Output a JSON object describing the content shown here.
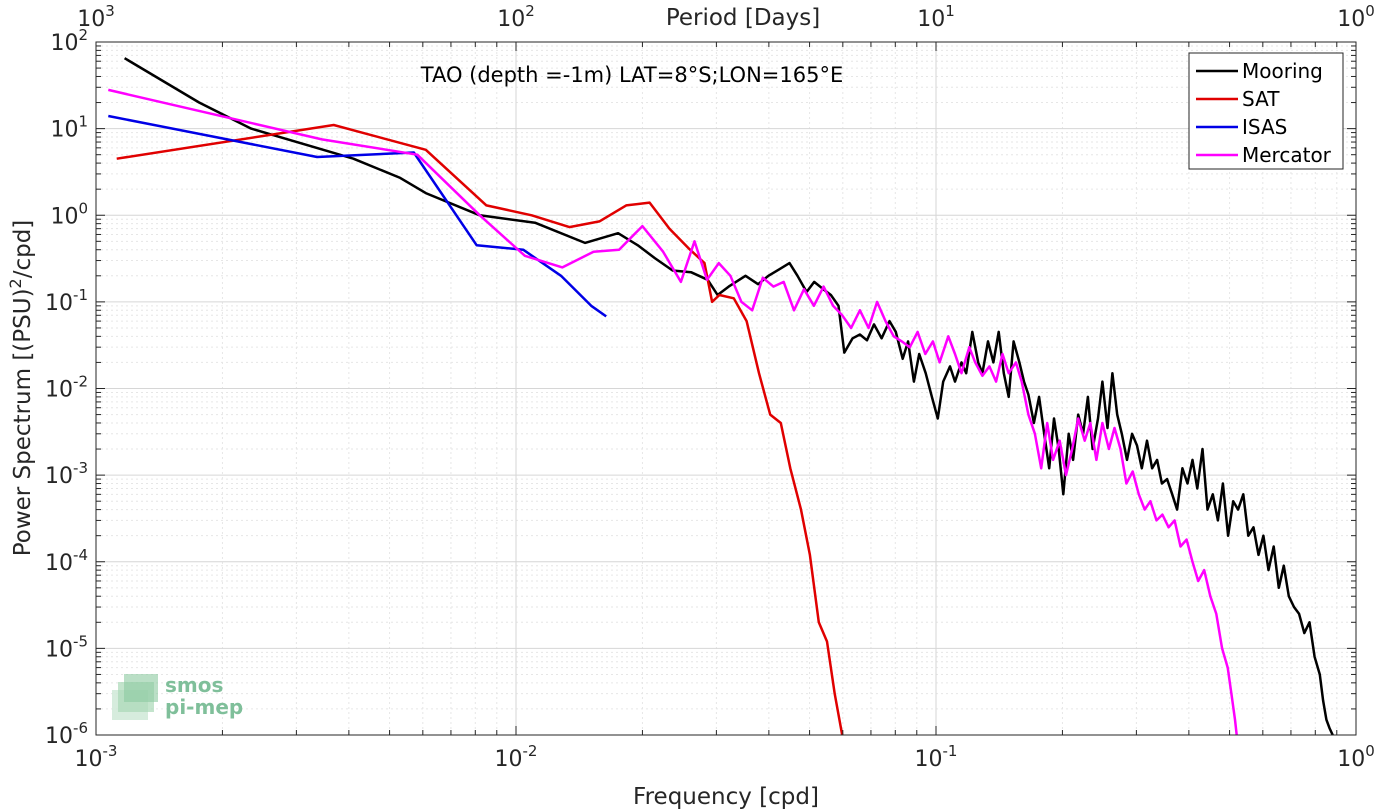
{
  "chart_data": {
    "type": "line",
    "title": "TAO (depth =-1m) LAT=8°S;LON=165°E",
    "xlabel": "Frequency [cpd]",
    "ylabel_parts": {
      "prefix": "Power Spectrum [(PSU)",
      "sup": "2",
      "suffix": "/cpd]"
    },
    "top_xlabel": "Period [Days]",
    "x_scale": "log",
    "y_scale": "log",
    "xlim": [
      0.001,
      1
    ],
    "ylim": [
      1e-06,
      100
    ],
    "grid": true,
    "legend_position": "top-right",
    "x_ticks": [
      {
        "base": "10",
        "exp": "-3",
        "value": 0.001
      },
      {
        "base": "10",
        "exp": "-2",
        "value": 0.01
      },
      {
        "base": "10",
        "exp": "-1",
        "value": 0.1
      },
      {
        "base": "10",
        "exp": "0",
        "value": 1
      }
    ],
    "top_ticks": [
      {
        "base": "10",
        "exp": "3",
        "value": 0.001
      },
      {
        "base": "10",
        "exp": "2",
        "value": 0.01
      },
      {
        "base": "10",
        "exp": "1",
        "value": 0.1
      },
      {
        "base": "10",
        "exp": "0",
        "value": 1
      }
    ],
    "y_ticks": [
      {
        "base": "10",
        "exp": "2",
        "value": 100
      },
      {
        "base": "10",
        "exp": "1",
        "value": 10
      },
      {
        "base": "10",
        "exp": "0",
        "value": 1
      },
      {
        "base": "10",
        "exp": "-1",
        "value": 0.1
      },
      {
        "base": "10",
        "exp": "-2",
        "value": 0.01
      },
      {
        "base": "10",
        "exp": "-3",
        "value": 0.001
      },
      {
        "base": "10",
        "exp": "-4",
        "value": 0.0001
      },
      {
        "base": "10",
        "exp": "-5",
        "value": 1e-05
      },
      {
        "base": "10",
        "exp": "-6",
        "value": 1e-06
      }
    ],
    "series": [
      {
        "name": "Mooring",
        "color": "#000000",
        "points": [
          [
            0.00117,
            65
          ],
          [
            0.00176,
            20
          ],
          [
            0.00234,
            10
          ],
          [
            0.0041,
            4.5
          ],
          [
            0.0053,
            2.7
          ],
          [
            0.0061,
            1.8
          ],
          [
            0.0082,
            1.0
          ],
          [
            0.0111,
            0.82
          ],
          [
            0.0146,
            0.48
          ],
          [
            0.0175,
            0.62
          ],
          [
            0.0195,
            0.45
          ],
          [
            0.0214,
            0.32
          ],
          [
            0.0236,
            0.23
          ],
          [
            0.0261,
            0.22
          ],
          [
            0.0286,
            0.18
          ],
          [
            0.0302,
            0.12
          ],
          [
            0.0321,
            0.15
          ],
          [
            0.0352,
            0.2
          ],
          [
            0.0377,
            0.16
          ],
          [
            0.0399,
            0.2
          ],
          [
            0.0425,
            0.24
          ],
          [
            0.0448,
            0.28
          ],
          [
            0.0468,
            0.2
          ],
          [
            0.0492,
            0.13
          ],
          [
            0.0513,
            0.17
          ],
          [
            0.0539,
            0.14
          ],
          [
            0.0562,
            0.12
          ],
          [
            0.0586,
            0.09
          ],
          [
            0.0605,
            0.026
          ],
          [
            0.0633,
            0.038
          ],
          [
            0.0659,
            0.042
          ],
          [
            0.0685,
            0.036
          ],
          [
            0.0712,
            0.055
          ],
          [
            0.0742,
            0.038
          ],
          [
            0.0775,
            0.06
          ],
          [
            0.0802,
            0.045
          ],
          [
            0.0833,
            0.022
          ],
          [
            0.0858,
            0.035
          ],
          [
            0.0886,
            0.012
          ],
          [
            0.0912,
            0.025
          ],
          [
            0.0945,
            0.015
          ],
          [
            0.0978,
            0.008
          ],
          [
            0.101,
            0.0045
          ],
          [
            0.104,
            0.012
          ],
          [
            0.108,
            0.018
          ],
          [
            0.111,
            0.012
          ],
          [
            0.115,
            0.02
          ],
          [
            0.118,
            0.015
          ],
          [
            0.122,
            0.045
          ],
          [
            0.126,
            0.02
          ],
          [
            0.129,
            0.015
          ],
          [
            0.133,
            0.035
          ],
          [
            0.137,
            0.02
          ],
          [
            0.141,
            0.045
          ],
          [
            0.145,
            0.015
          ],
          [
            0.149,
            0.008
          ],
          [
            0.153,
            0.035
          ],
          [
            0.158,
            0.02
          ],
          [
            0.162,
            0.012
          ],
          [
            0.166,
            0.0085
          ],
          [
            0.171,
            0.004
          ],
          [
            0.176,
            0.008
          ],
          [
            0.181,
            0.003
          ],
          [
            0.186,
            0.0012
          ],
          [
            0.191,
            0.0045
          ],
          [
            0.196,
            0.002
          ],
          [
            0.201,
            0.0006
          ],
          [
            0.207,
            0.003
          ],
          [
            0.212,
            0.0015
          ],
          [
            0.218,
            0.005
          ],
          [
            0.224,
            0.003
          ],
          [
            0.23,
            0.008
          ],
          [
            0.236,
            0.002
          ],
          [
            0.243,
            0.0045
          ],
          [
            0.249,
            0.012
          ],
          [
            0.256,
            0.0035
          ],
          [
            0.263,
            0.015
          ],
          [
            0.27,
            0.005
          ],
          [
            0.277,
            0.003
          ],
          [
            0.285,
            0.0015
          ],
          [
            0.293,
            0.003
          ],
          [
            0.301,
            0.0022
          ],
          [
            0.309,
            0.0012
          ],
          [
            0.318,
            0.0025
          ],
          [
            0.327,
            0.0012
          ],
          [
            0.336,
            0.0015
          ],
          [
            0.345,
            0.0008
          ],
          [
            0.355,
            0.0009
          ],
          [
            0.365,
            0.0006
          ],
          [
            0.375,
            0.0004
          ],
          [
            0.386,
            0.0012
          ],
          [
            0.397,
            0.0008
          ],
          [
            0.408,
            0.0015
          ],
          [
            0.419,
            0.0007
          ],
          [
            0.431,
            0.002
          ],
          [
            0.443,
            0.0004
          ],
          [
            0.456,
            0.0006
          ],
          [
            0.469,
            0.0003
          ],
          [
            0.482,
            0.0008
          ],
          [
            0.496,
            0.0002
          ],
          [
            0.51,
            0.0005
          ],
          [
            0.524,
            0.0004
          ],
          [
            0.539,
            0.0006
          ],
          [
            0.554,
            0.0002
          ],
          [
            0.57,
            0.00025
          ],
          [
            0.586,
            0.00012
          ],
          [
            0.602,
            0.0002
          ],
          [
            0.619,
            8e-05
          ],
          [
            0.637,
            0.00015
          ],
          [
            0.655,
            5e-05
          ],
          [
            0.673,
            9e-05
          ],
          [
            0.692,
            4e-05
          ],
          [
            0.712,
            3e-05
          ],
          [
            0.732,
            2.5e-05
          ],
          [
            0.753,
            1.5e-05
          ],
          [
            0.775,
            2e-05
          ],
          [
            0.797,
            8e-06
          ],
          [
            0.82,
            5e-06
          ],
          [
            0.835,
            2.5e-06
          ],
          [
            0.85,
            1.5e-06
          ],
          [
            0.865,
            1.2e-06
          ],
          [
            0.88,
            1e-06
          ]
        ]
      },
      {
        "name": "SAT",
        "color": "#e00000",
        "points": [
          [
            0.00112,
            4.5
          ],
          [
            0.00368,
            11
          ],
          [
            0.0061,
            5.7
          ],
          [
            0.0085,
            1.3
          ],
          [
            0.0109,
            1.0
          ],
          [
            0.0134,
            0.73
          ],
          [
            0.0158,
            0.85
          ],
          [
            0.0183,
            1.3
          ],
          [
            0.0208,
            1.4
          ],
          [
            0.0232,
            0.7
          ],
          [
            0.0257,
            0.42
          ],
          [
            0.0281,
            0.28
          ],
          [
            0.0293,
            0.1
          ],
          [
            0.0305,
            0.12
          ],
          [
            0.033,
            0.11
          ],
          [
            0.0354,
            0.06
          ],
          [
            0.0379,
            0.015
          ],
          [
            0.0403,
            0.005
          ],
          [
            0.0427,
            0.004
          ],
          [
            0.045,
            0.0012
          ],
          [
            0.0477,
            0.0004
          ],
          [
            0.0501,
            0.00012
          ],
          [
            0.0526,
            2e-05
          ],
          [
            0.055,
            1.2e-05
          ],
          [
            0.0574,
            3e-06
          ],
          [
            0.0598,
            1e-06
          ]
        ]
      },
      {
        "name": "ISAS",
        "color": "#0000e6",
        "points": [
          [
            0.00107,
            14
          ],
          [
            0.00336,
            4.7
          ],
          [
            0.00571,
            5.3
          ],
          [
            0.00806,
            0.45
          ],
          [
            0.0104,
            0.4
          ],
          [
            0.0128,
            0.2
          ],
          [
            0.0151,
            0.09
          ],
          [
            0.0164,
            0.068
          ]
        ]
      },
      {
        "name": "Mercator",
        "color": "#ff00ff",
        "points": [
          [
            0.00107,
            28
          ],
          [
            0.00345,
            7.5
          ],
          [
            0.00582,
            5.0
          ],
          [
            0.0082,
            1.0
          ],
          [
            0.0105,
            0.34
          ],
          [
            0.0129,
            0.25
          ],
          [
            0.0153,
            0.38
          ],
          [
            0.0176,
            0.4
          ],
          [
            0.02,
            0.75
          ],
          [
            0.0224,
            0.38
          ],
          [
            0.0247,
            0.17
          ],
          [
            0.0266,
            0.5
          ],
          [
            0.0285,
            0.18
          ],
          [
            0.0304,
            0.28
          ],
          [
            0.0324,
            0.2
          ],
          [
            0.0344,
            0.1
          ],
          [
            0.0365,
            0.08
          ],
          [
            0.0387,
            0.19
          ],
          [
            0.041,
            0.15
          ],
          [
            0.0434,
            0.17
          ],
          [
            0.0459,
            0.08
          ],
          [
            0.0485,
            0.14
          ],
          [
            0.0512,
            0.09
          ],
          [
            0.054,
            0.15
          ],
          [
            0.0569,
            0.09
          ],
          [
            0.0598,
            0.07
          ],
          [
            0.0628,
            0.05
          ],
          [
            0.0659,
            0.08
          ],
          [
            0.0691,
            0.05
          ],
          [
            0.0724,
            0.1
          ],
          [
            0.0758,
            0.06
          ],
          [
            0.0793,
            0.04
          ],
          [
            0.0829,
            0.035
          ],
          [
            0.0866,
            0.03
          ],
          [
            0.0904,
            0.045
          ],
          [
            0.0943,
            0.025
          ],
          [
            0.0983,
            0.035
          ],
          [
            0.102,
            0.02
          ],
          [
            0.107,
            0.04
          ],
          [
            0.111,
            0.025
          ],
          [
            0.115,
            0.015
          ],
          [
            0.12,
            0.03
          ],
          [
            0.124,
            0.02
          ],
          [
            0.129,
            0.014
          ],
          [
            0.134,
            0.018
          ],
          [
            0.139,
            0.012
          ],
          [
            0.144,
            0.025
          ],
          [
            0.149,
            0.015
          ],
          [
            0.155,
            0.02
          ],
          [
            0.16,
            0.012
          ],
          [
            0.166,
            0.005
          ],
          [
            0.172,
            0.003
          ],
          [
            0.178,
            0.0012
          ],
          [
            0.184,
            0.004
          ],
          [
            0.19,
            0.0015
          ],
          [
            0.197,
            0.0025
          ],
          [
            0.204,
            0.001
          ],
          [
            0.211,
            0.002
          ],
          [
            0.218,
            0.0045
          ],
          [
            0.226,
            0.0025
          ],
          [
            0.233,
            0.004
          ],
          [
            0.241,
            0.0015
          ],
          [
            0.249,
            0.004
          ],
          [
            0.258,
            0.002
          ],
          [
            0.266,
            0.0035
          ],
          [
            0.275,
            0.002
          ],
          [
            0.284,
            0.0008
          ],
          [
            0.294,
            0.0011
          ],
          [
            0.304,
            0.0006
          ],
          [
            0.314,
            0.0004
          ],
          [
            0.324,
            0.0005
          ],
          [
            0.335,
            0.0003
          ],
          [
            0.346,
            0.00035
          ],
          [
            0.358,
            0.00025
          ],
          [
            0.37,
            0.0003
          ],
          [
            0.382,
            0.00015
          ],
          [
            0.395,
            0.00018
          ],
          [
            0.408,
            0.0001
          ],
          [
            0.421,
            6e-05
          ],
          [
            0.435,
            8e-05
          ],
          [
            0.45,
            4e-05
          ],
          [
            0.465,
            2.5e-05
          ],
          [
            0.48,
            1e-05
          ],
          [
            0.495,
            6e-06
          ],
          [
            0.505,
            3e-06
          ],
          [
            0.515,
            1.5e-06
          ],
          [
            0.52,
            1e-06
          ]
        ]
      }
    ]
  },
  "logo": {
    "line1": "smos",
    "line2": "pi-mep"
  }
}
